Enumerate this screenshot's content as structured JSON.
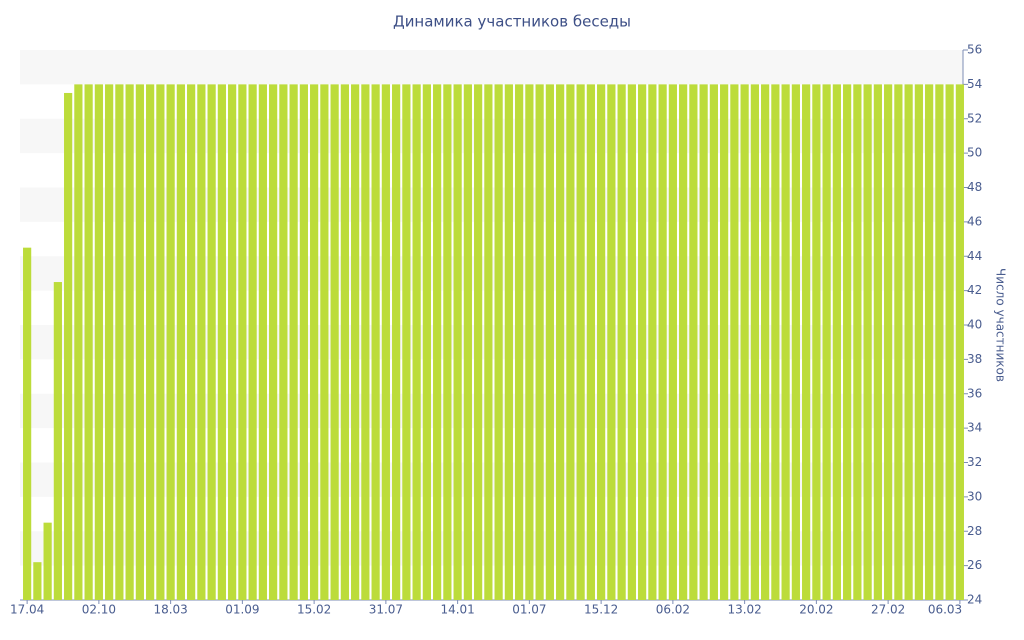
{
  "chart_data": {
    "type": "bar",
    "title": "Динамика участников беседы",
    "y_axis_label": "Число участников",
    "categories": [
      "17.04",
      null,
      null,
      null,
      null,
      null,
      null,
      "02.10",
      null,
      null,
      null,
      null,
      null,
      null,
      "18.03",
      null,
      null,
      null,
      null,
      null,
      null,
      "01.09",
      null,
      null,
      null,
      null,
      null,
      null,
      "15.02",
      null,
      null,
      null,
      null,
      null,
      null,
      "31.07",
      null,
      null,
      null,
      null,
      null,
      null,
      "14.01",
      null,
      null,
      null,
      null,
      null,
      null,
      "01.07",
      null,
      null,
      null,
      null,
      null,
      null,
      "15.12",
      null,
      null,
      null,
      null,
      null,
      null,
      "06.02",
      null,
      null,
      null,
      null,
      null,
      null,
      "13.02",
      null,
      null,
      null,
      null,
      null,
      null,
      "20.02",
      null,
      null,
      null,
      null,
      null,
      null,
      "27.02",
      null,
      null,
      null,
      null,
      null,
      null,
      "06.03"
    ],
    "values": [
      44.5,
      26.2,
      28.5,
      42.5,
      53.5,
      54,
      54,
      54,
      54,
      54,
      54,
      54,
      54,
      54,
      54,
      54,
      54,
      54,
      54,
      54,
      54,
      54,
      54,
      54,
      54,
      54,
      54,
      54,
      54,
      54,
      54,
      54,
      54,
      54,
      54,
      54,
      54,
      54,
      54,
      54,
      54,
      54,
      54,
      54,
      54,
      54,
      54,
      54,
      54,
      54,
      54,
      54,
      54,
      54,
      54,
      54,
      54,
      54,
      54,
      54,
      54,
      54,
      54,
      54,
      54,
      54,
      54,
      54,
      54,
      54,
      54,
      54,
      54,
      54,
      54,
      54,
      54,
      54,
      54,
      54,
      54,
      54,
      54,
      54,
      54,
      54,
      54,
      54,
      54,
      54,
      54,
      54
    ],
    "color": "#bcdc3a",
    "ylim": [
      24,
      56
    ],
    "yticks": [
      24,
      26,
      28,
      30,
      32,
      34,
      36,
      38,
      40,
      42,
      44,
      46,
      48,
      50,
      52,
      54,
      56
    ],
    "y_axis_side": "right",
    "grid": "bands"
  }
}
